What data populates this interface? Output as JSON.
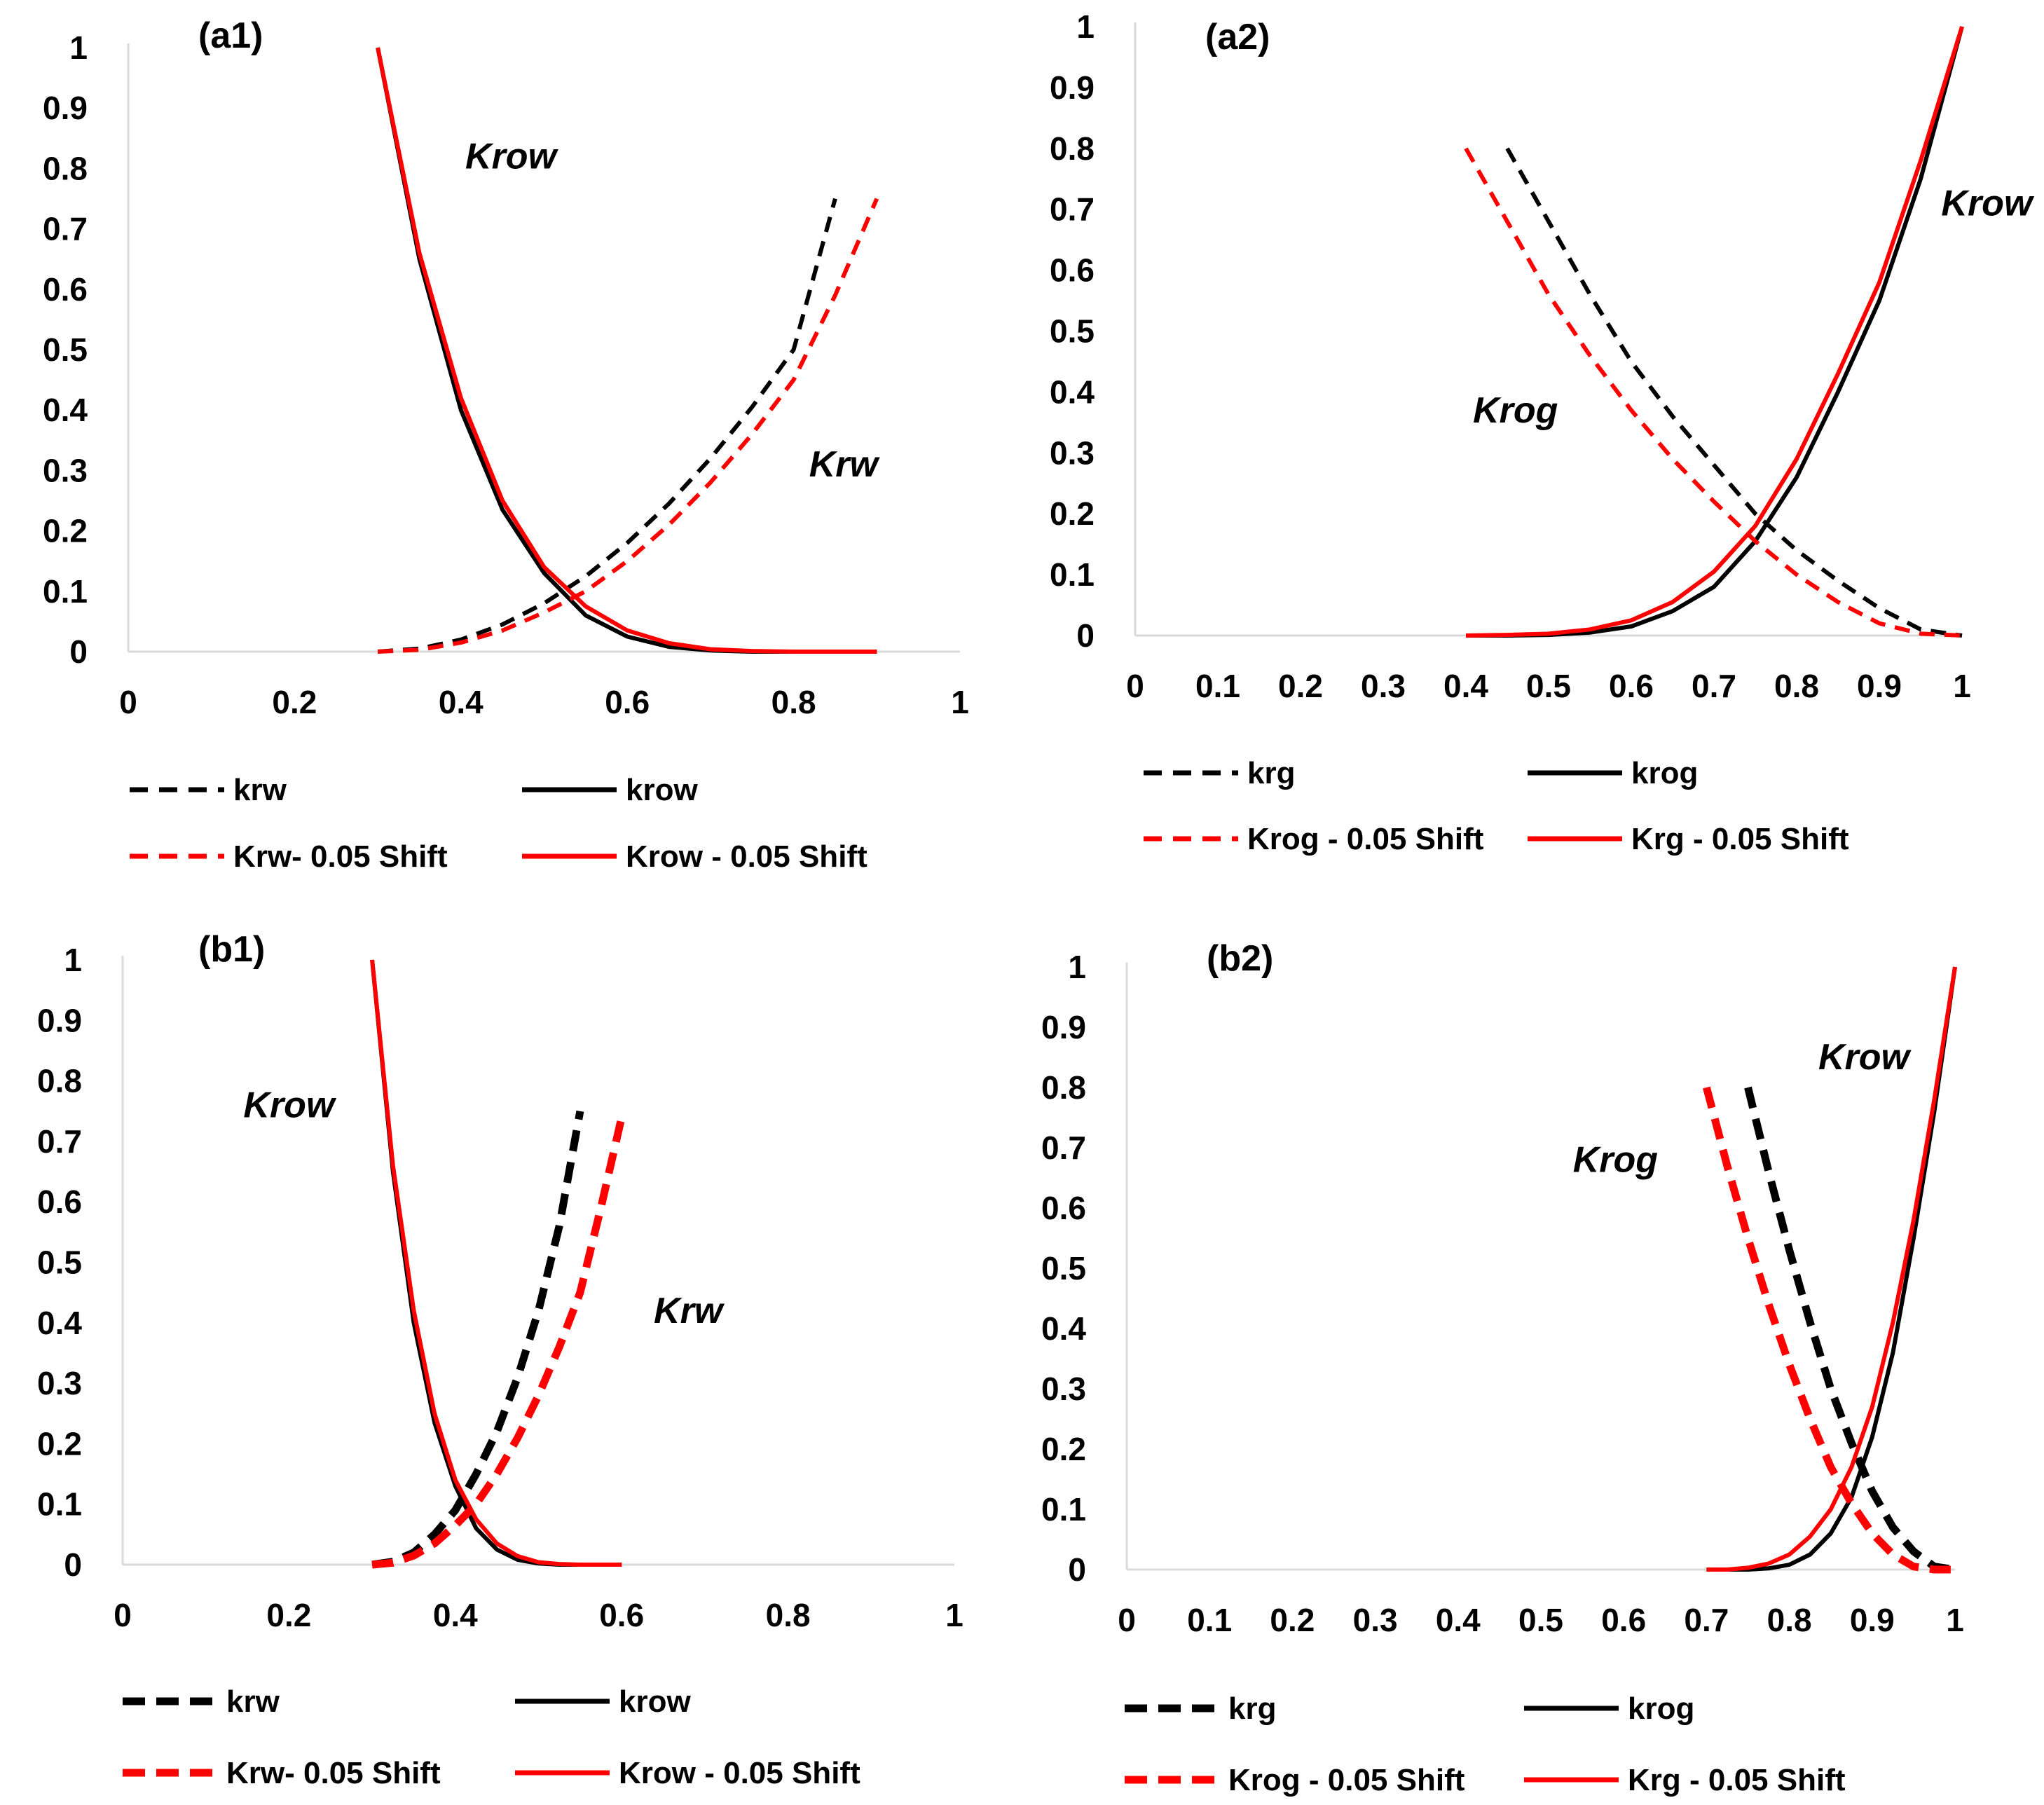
{
  "colors": {
    "base": "#000000",
    "shift": "#ff0000",
    "axis": "#d9d9d9"
  },
  "chart_data": [
    {
      "panel_label": "(a1)",
      "type": "line",
      "xlim": [
        0,
        1
      ],
      "ylim": [
        0,
        1
      ],
      "xticks": [
        0,
        0.2,
        0.4,
        0.6,
        0.8,
        1
      ],
      "xtick_labels": [
        "0",
        "0.2",
        "0.4",
        "0.6",
        "0.8",
        "1"
      ],
      "yticks": [
        0,
        0.1,
        0.2,
        0.3,
        0.4,
        0.5,
        0.6,
        0.7,
        0.8,
        0.9,
        1
      ],
      "ytick_labels": [
        "0",
        "0.1",
        "0.2",
        "0.3",
        "0.4",
        "0.5",
        "0.6",
        "0.7",
        "0.8",
        "0.9",
        "1"
      ],
      "grid": false,
      "legend_position": "bottom",
      "annotations": [
        {
          "text": "Krow",
          "x": 0.46,
          "y": 0.8
        },
        {
          "text": "Krw",
          "x": 0.86,
          "y": 0.29
        }
      ],
      "series": [
        {
          "name": "krw",
          "color": "#000000",
          "dash": true,
          "x": [
            0.3,
            0.35,
            0.4,
            0.45,
            0.5,
            0.55,
            0.6,
            0.65,
            0.7,
            0.75,
            0.8,
            0.85
          ],
          "y": [
            0.0,
            0.005,
            0.02,
            0.045,
            0.08,
            0.125,
            0.18,
            0.245,
            0.32,
            0.405,
            0.5,
            0.75
          ]
        },
        {
          "name": "krow",
          "color": "#000000",
          "dash": false,
          "x": [
            0.3,
            0.35,
            0.4,
            0.45,
            0.5,
            0.55,
            0.6,
            0.65,
            0.7,
            0.75,
            0.8,
            0.85,
            0.9
          ],
          "y": [
            1.0,
            0.65,
            0.4,
            0.235,
            0.13,
            0.06,
            0.025,
            0.008,
            0.002,
            0.0,
            0.0,
            0.0,
            0.0
          ]
        },
        {
          "name": "Krw- 0.05 Shift",
          "color": "#ff0000",
          "dash": true,
          "x": [
            0.3,
            0.35,
            0.4,
            0.45,
            0.5,
            0.55,
            0.6,
            0.65,
            0.7,
            0.75,
            0.8,
            0.85,
            0.9
          ],
          "y": [
            0.0,
            0.003,
            0.015,
            0.035,
            0.065,
            0.1,
            0.15,
            0.21,
            0.28,
            0.36,
            0.45,
            0.59,
            0.75
          ]
        },
        {
          "name": "Krow - 0.05 Shift",
          "color": "#ff0000",
          "dash": false,
          "x": [
            0.3,
            0.35,
            0.4,
            0.45,
            0.5,
            0.55,
            0.6,
            0.65,
            0.7,
            0.75,
            0.8,
            0.85,
            0.9
          ],
          "y": [
            1.0,
            0.66,
            0.42,
            0.25,
            0.14,
            0.075,
            0.035,
            0.014,
            0.004,
            0.001,
            0.0,
            0.0,
            0.0
          ]
        }
      ]
    },
    {
      "panel_label": "(a2)",
      "type": "line",
      "xlim": [
        0,
        1
      ],
      "ylim": [
        0,
        1
      ],
      "xticks": [
        0,
        0.1,
        0.2,
        0.3,
        0.4,
        0.5,
        0.6,
        0.7,
        0.8,
        0.9,
        1
      ],
      "xtick_labels": [
        "0",
        "0.1",
        "0.2",
        "0.3",
        "0.4",
        "0.5",
        "0.6",
        "0.7",
        "0.8",
        "0.9",
        "1"
      ],
      "yticks": [
        0,
        0.1,
        0.2,
        0.3,
        0.4,
        0.5,
        0.6,
        0.7,
        0.8,
        0.9,
        1
      ],
      "ytick_labels": [
        "0",
        "0.1",
        "0.2",
        "0.3",
        "0.4",
        "0.5",
        "0.6",
        "0.7",
        "0.8",
        "0.9",
        "1"
      ],
      "grid": false,
      "legend_position": "bottom",
      "annotations": [
        {
          "text": "Krow",
          "x": 1.03,
          "y": 0.69
        },
        {
          "text": "Krog",
          "x": 0.46,
          "y": 0.35
        }
      ],
      "series": [
        {
          "name": "krg",
          "color": "#000000",
          "dash": true,
          "x": [
            0.45,
            0.5,
            0.55,
            0.6,
            0.65,
            0.7,
            0.75,
            0.8,
            0.85,
            0.9,
            0.95,
            1.0
          ],
          "y": [
            0.8,
            0.68,
            0.56,
            0.45,
            0.36,
            0.28,
            0.2,
            0.14,
            0.09,
            0.045,
            0.01,
            0.0
          ]
        },
        {
          "name": "krog",
          "color": "#000000",
          "dash": false,
          "x": [
            0.4,
            0.45,
            0.5,
            0.55,
            0.6,
            0.65,
            0.7,
            0.75,
            0.8,
            0.85,
            0.9,
            0.95,
            1.0
          ],
          "y": [
            0.0,
            0.0,
            0.001,
            0.005,
            0.015,
            0.04,
            0.08,
            0.155,
            0.26,
            0.4,
            0.55,
            0.75,
            1.0
          ]
        },
        {
          "name": "Krog - 0.05 Shift",
          "color": "#ff0000",
          "dash": true,
          "x": [
            0.4,
            0.45,
            0.5,
            0.55,
            0.6,
            0.65,
            0.7,
            0.75,
            0.8,
            0.85,
            0.9,
            0.95,
            1.0
          ],
          "y": [
            0.8,
            0.68,
            0.56,
            0.46,
            0.37,
            0.29,
            0.22,
            0.155,
            0.1,
            0.055,
            0.02,
            0.003,
            0.0
          ]
        },
        {
          "name": "Krg - 0.05 Shift",
          "color": "#ff0000",
          "dash": false,
          "x": [
            0.4,
            0.45,
            0.5,
            0.55,
            0.6,
            0.65,
            0.7,
            0.75,
            0.8,
            0.85,
            0.9,
            0.95,
            1.0
          ],
          "y": [
            0.0,
            0.001,
            0.003,
            0.01,
            0.025,
            0.055,
            0.105,
            0.18,
            0.29,
            0.43,
            0.58,
            0.78,
            1.0
          ]
        }
      ]
    },
    {
      "panel_label": "(b1)",
      "type": "line",
      "xlim": [
        0,
        1
      ],
      "ylim": [
        0,
        1
      ],
      "xticks": [
        0,
        0.2,
        0.4,
        0.6,
        0.8,
        1
      ],
      "xtick_labels": [
        "0",
        "0.2",
        "0.4",
        "0.6",
        "0.8",
        "1"
      ],
      "yticks": [
        0,
        0.1,
        0.2,
        0.3,
        0.4,
        0.5,
        0.6,
        0.7,
        0.8,
        0.9,
        1
      ],
      "ytick_labels": [
        "0",
        "0.1",
        "0.2",
        "0.3",
        "0.4",
        "0.5",
        "0.6",
        "0.7",
        "0.8",
        "0.9",
        "1"
      ],
      "grid": false,
      "legend_position": "bottom",
      "annotations": [
        {
          "text": "Krow",
          "x": 0.2,
          "y": 0.74
        },
        {
          "text": "Krw",
          "x": 0.68,
          "y": 0.4
        }
      ],
      "series": [
        {
          "name": "krw",
          "color": "#000000",
          "dash": true,
          "x": [
            0.3,
            0.325,
            0.35,
            0.375,
            0.4,
            0.425,
            0.45,
            0.475,
            0.5,
            0.525,
            0.55
          ],
          "y": [
            0.0,
            0.005,
            0.02,
            0.05,
            0.09,
            0.15,
            0.22,
            0.31,
            0.42,
            0.56,
            0.75
          ]
        },
        {
          "name": "krow",
          "color": "#000000",
          "dash": false,
          "x": [
            0.3,
            0.325,
            0.35,
            0.375,
            0.4,
            0.425,
            0.45,
            0.475,
            0.5,
            0.525,
            0.55,
            0.575,
            0.6
          ],
          "y": [
            1.0,
            0.65,
            0.4,
            0.235,
            0.13,
            0.06,
            0.025,
            0.008,
            0.002,
            0.0,
            0.0,
            0.0,
            0.0
          ]
        },
        {
          "name": "Krw- 0.05 Shift",
          "color": "#ff0000",
          "dash": true,
          "x": [
            0.3,
            0.325,
            0.35,
            0.375,
            0.4,
            0.425,
            0.45,
            0.475,
            0.5,
            0.525,
            0.55,
            0.575,
            0.6
          ],
          "y": [
            0.0,
            0.003,
            0.015,
            0.035,
            0.065,
            0.1,
            0.15,
            0.21,
            0.28,
            0.36,
            0.45,
            0.59,
            0.74
          ]
        },
        {
          "name": "Krow - 0.05 Shift",
          "color": "#ff0000",
          "dash": false,
          "x": [
            0.3,
            0.325,
            0.35,
            0.375,
            0.4,
            0.425,
            0.45,
            0.475,
            0.5,
            0.525,
            0.55,
            0.575,
            0.6
          ],
          "y": [
            1.0,
            0.66,
            0.42,
            0.25,
            0.14,
            0.075,
            0.035,
            0.014,
            0.004,
            0.001,
            0.0,
            0.0,
            0.0
          ]
        }
      ]
    },
    {
      "panel_label": "(b2)",
      "type": "line",
      "xlim": [
        0,
        1
      ],
      "ylim": [
        0,
        1
      ],
      "xticks": [
        0,
        0.1,
        0.2,
        0.3,
        0.4,
        0.5,
        0.6,
        0.7,
        0.8,
        0.9,
        1
      ],
      "xtick_labels": [
        "0",
        "0.1",
        "0.2",
        "0.3",
        "0.4",
        "0.5",
        "0.6",
        "0.7",
        "0.8",
        "0.9",
        "1"
      ],
      "yticks": [
        0,
        0.1,
        0.2,
        0.3,
        0.4,
        0.5,
        0.6,
        0.7,
        0.8,
        0.9,
        1
      ],
      "ytick_labels": [
        "0",
        "0.1",
        "0.2",
        "0.3",
        "0.4",
        "0.5",
        "0.6",
        "0.7",
        "0.8",
        "0.9",
        "1"
      ],
      "grid": false,
      "legend_position": "bottom",
      "annotations": [
        {
          "text": "Krow",
          "x": 0.89,
          "y": 0.83
        },
        {
          "text": "Krog",
          "x": 0.59,
          "y": 0.66
        }
      ],
      "series": [
        {
          "name": "krg",
          "color": "#000000",
          "dash": true,
          "x": [
            0.75,
            0.775,
            0.8,
            0.825,
            0.85,
            0.875,
            0.9,
            0.925,
            0.95,
            0.975,
            1.0
          ],
          "y": [
            0.8,
            0.66,
            0.53,
            0.41,
            0.3,
            0.21,
            0.13,
            0.07,
            0.03,
            0.005,
            0.0
          ]
        },
        {
          "name": "krog",
          "color": "#000000",
          "dash": false,
          "x": [
            0.7,
            0.725,
            0.75,
            0.775,
            0.8,
            0.825,
            0.85,
            0.875,
            0.9,
            0.925,
            0.95,
            0.975,
            1.0
          ],
          "y": [
            0.0,
            0.0,
            0.0,
            0.002,
            0.008,
            0.025,
            0.06,
            0.12,
            0.22,
            0.36,
            0.55,
            0.76,
            1.0
          ]
        },
        {
          "name": "Krog - 0.05 Shift",
          "color": "#ff0000",
          "dash": true,
          "x": [
            0.7,
            0.725,
            0.75,
            0.775,
            0.8,
            0.825,
            0.85,
            0.875,
            0.9,
            0.925,
            0.95,
            0.975,
            1.0
          ],
          "y": [
            0.8,
            0.67,
            0.55,
            0.44,
            0.34,
            0.25,
            0.17,
            0.11,
            0.06,
            0.025,
            0.005,
            0.0,
            0.0
          ]
        },
        {
          "name": "Krg - 0.05 Shift",
          "color": "#ff0000",
          "dash": false,
          "x": [
            0.7,
            0.725,
            0.75,
            0.775,
            0.8,
            0.825,
            0.85,
            0.875,
            0.9,
            0.925,
            0.95,
            0.975,
            1.0
          ],
          "y": [
            0.0,
            0.0,
            0.003,
            0.01,
            0.025,
            0.055,
            0.1,
            0.17,
            0.27,
            0.41,
            0.58,
            0.78,
            1.0
          ]
        }
      ]
    }
  ]
}
